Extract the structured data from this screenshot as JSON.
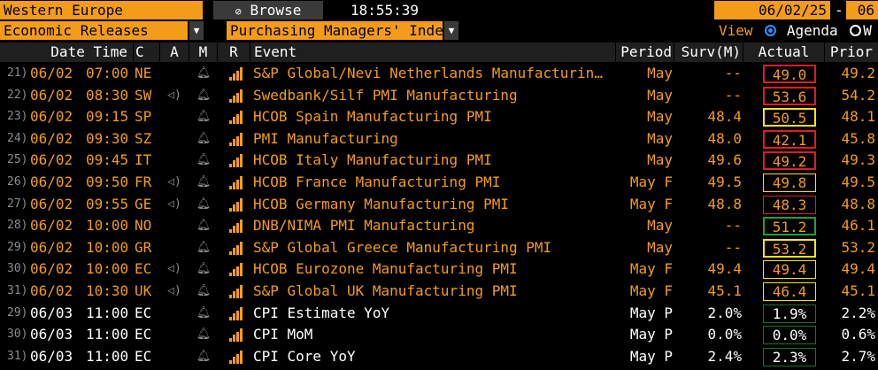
{
  "toolbar": {
    "region": "Western Europe",
    "browse": "Browse",
    "time": "18:55:39",
    "date_start": "06/02/25",
    "date_sep": "-",
    "date_end": "06",
    "category": "Economic Releases",
    "index_filter": "Purchasing Managers' Index",
    "view_label": "View",
    "view_agenda": "Agenda",
    "view_w": "W"
  },
  "columns": {
    "date_time": "Date Time",
    "c": "C",
    "a": "A",
    "m": "M",
    "r": "R",
    "event": "Event",
    "period": "Period",
    "surv": "Surv(M)",
    "actual": "Actual",
    "prior": "Prior"
  },
  "colors": {
    "orange": "#f39c1a",
    "red": "#e01b24",
    "yellow": "#f5e60a",
    "green": "#17a33a",
    "dark_green": "#1f6e2e",
    "white": "#ffffff"
  },
  "rows": [
    {
      "num": "21)",
      "date": "06/02",
      "time": "07:00",
      "c": "NE",
      "speaker": false,
      "event": "S&P Global/Nevi Netherlands Manufacturin…",
      "period": "May",
      "surv": "--",
      "actual": "49.0",
      "prior": "49.2",
      "box": "red",
      "color": "orange"
    },
    {
      "num": "22)",
      "date": "06/02",
      "time": "08:30",
      "c": "SW",
      "speaker": true,
      "event": "Swedbank/Silf PMI Manufacturing",
      "period": "May",
      "surv": "--",
      "actual": "53.6",
      "prior": "54.2",
      "box": "red",
      "color": "orange"
    },
    {
      "num": "23)",
      "date": "06/02",
      "time": "09:15",
      "c": "SP",
      "speaker": false,
      "event": "HCOB Spain Manufacturing PMI",
      "period": "May",
      "surv": "48.4",
      "actual": "50.5",
      "prior": "48.1",
      "box": "yellow",
      "color": "orange"
    },
    {
      "num": "24)",
      "date": "06/02",
      "time": "09:30",
      "c": "SZ",
      "speaker": false,
      "event": "PMI Manufacturing",
      "period": "May",
      "surv": "48.0",
      "actual": "42.1",
      "prior": "45.8",
      "box": "red",
      "color": "orange"
    },
    {
      "num": "25)",
      "date": "06/02",
      "time": "09:45",
      "c": "IT",
      "speaker": false,
      "event": "HCOB Italy Manufacturing PMI",
      "period": "May",
      "surv": "49.6",
      "actual": "49.2",
      "prior": "49.3",
      "box": "red",
      "color": "orange"
    },
    {
      "num": "26)",
      "date": "06/02",
      "time": "09:50",
      "c": "FR",
      "speaker": true,
      "event": "HCOB France Manufacturing PMI",
      "period": "May F",
      "surv": "49.5",
      "actual": "49.8",
      "prior": "49.5",
      "box": "thin-yellow",
      "color": "orange"
    },
    {
      "num": "27)",
      "date": "06/02",
      "time": "09:55",
      "c": "GE",
      "speaker": true,
      "event": "HCOB Germany Manufacturing PMI",
      "period": "May F",
      "surv": "48.8",
      "actual": "48.3",
      "prior": "48.8",
      "box": "thin-red",
      "color": "orange"
    },
    {
      "num": "28)",
      "date": "06/02",
      "time": "10:00",
      "c": "NO",
      "speaker": false,
      "event": "DNB/NIMA PMI Manufacturing",
      "period": "May",
      "surv": "--",
      "actual": "51.2",
      "prior": "46.1",
      "box": "green",
      "color": "orange"
    },
    {
      "num": "29)",
      "date": "06/02",
      "time": "10:00",
      "c": "GR",
      "speaker": false,
      "event": "S&P Global Greece Manufacturing PMI",
      "period": "May",
      "surv": "--",
      "actual": "53.2",
      "prior": "53.2",
      "box": "yellow",
      "color": "orange"
    },
    {
      "num": "30)",
      "date": "06/02",
      "time": "10:00",
      "c": "EC",
      "speaker": true,
      "event": "HCOB Eurozone Manufacturing PMI",
      "period": "May F",
      "surv": "49.4",
      "actual": "49.4",
      "prior": "49.4",
      "box": "thin-yellow",
      "color": "orange"
    },
    {
      "num": "31)",
      "date": "06/02",
      "time": "10:30",
      "c": "UK",
      "speaker": true,
      "event": "S&P Global UK Manufacturing PMI",
      "period": "May F",
      "surv": "45.1",
      "actual": "46.4",
      "prior": "45.1",
      "box": "thin-yellow",
      "color": "orange"
    },
    {
      "num": "29)",
      "date": "06/03",
      "time": "11:00",
      "c": "EC",
      "speaker": false,
      "event": "CPI Estimate YoY",
      "period": "May P",
      "surv": "2.0%",
      "actual": "1.9%",
      "prior": "2.2%",
      "box": "thin-green",
      "color": "white"
    },
    {
      "num": "30)",
      "date": "06/03",
      "time": "11:00",
      "c": "EC",
      "speaker": false,
      "event": "CPI MoM",
      "period": "May P",
      "surv": "0.0%",
      "actual": "0.0%",
      "prior": "0.6%",
      "box": "thin-green",
      "color": "white"
    },
    {
      "num": "31)",
      "date": "06/03",
      "time": "11:00",
      "c": "EC",
      "speaker": false,
      "event": "CPI Core YoY",
      "period": "May P",
      "surv": "2.4%",
      "actual": "2.3%",
      "prior": "2.7%",
      "box": "thin-green",
      "color": "white"
    }
  ]
}
